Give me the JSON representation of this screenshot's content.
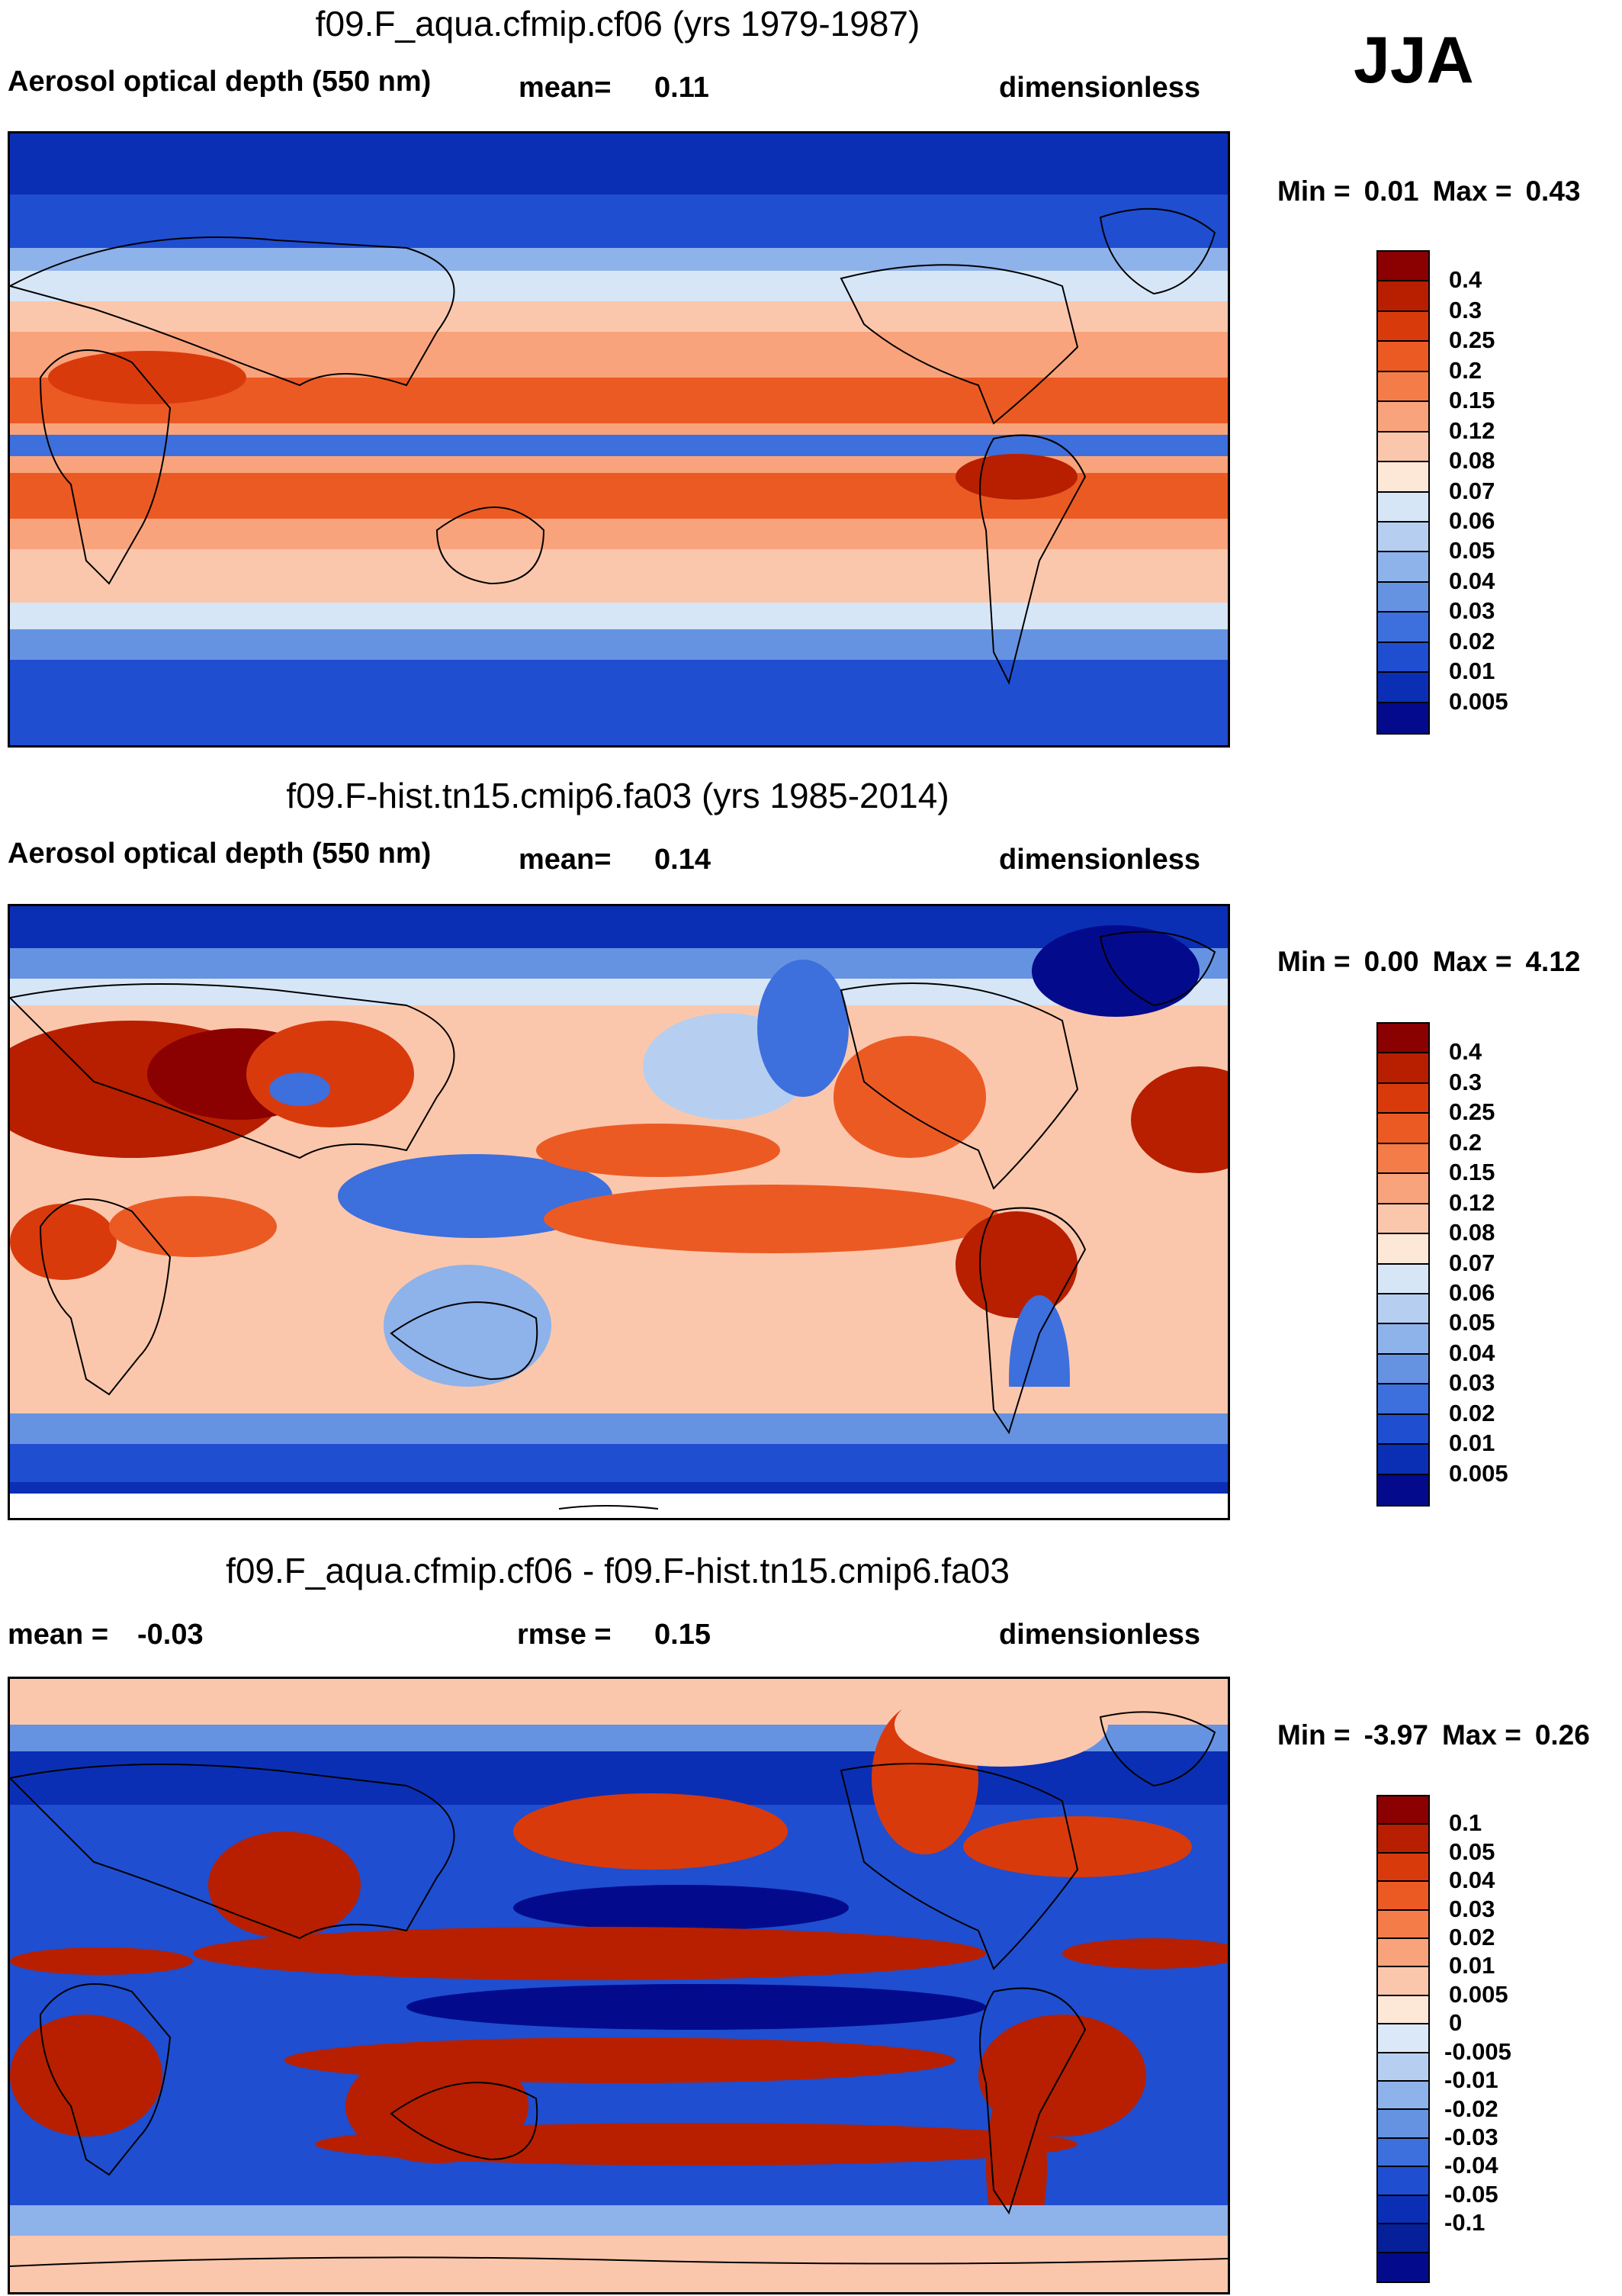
{
  "season": "JJA",
  "units": "dimensionless",
  "colors": {
    "abs_scale": [
      "#8b0000",
      "#b71f00",
      "#d93a0c",
      "#ec5a24",
      "#f47c48",
      "#f9a37c",
      "#fbc7ac",
      "#fde8d8",
      "#d7e6f7",
      "#b6cff0",
      "#8eb2ea",
      "#6593e2",
      "#3d6fdd",
      "#1f4ed0",
      "#0b2fb4",
      "#030b8c"
    ],
    "diff_scale": [
      "#8b0000",
      "#b71f00",
      "#d93a0c",
      "#ec5a24",
      "#f47c48",
      "#f9a37c",
      "#fbc7ac",
      "#fde8d8",
      "#dbe8f8",
      "#b6cff0",
      "#8eb2ea",
      "#6593e2",
      "#3d6fdd",
      "#1f4ed0",
      "#0b2fb4",
      "#06209a",
      "#030b8c"
    ]
  },
  "panels": [
    {
      "title": "f09.F_aqua.cfmip.cf06 (yrs 1979-1987)",
      "left_label": "Aerosol optical depth (550 nm)",
      "stat_label": "mean=",
      "stat_value": "0.11",
      "units": "dimensionless",
      "min_label": "Min =",
      "min_value": "0.01",
      "max_label": "Max =",
      "max_value": "0.43",
      "colorbar_labels": [
        "0.4",
        "0.3",
        "0.25",
        "0.2",
        "0.15",
        "0.12",
        "0.08",
        "0.07",
        "0.06",
        "0.05",
        "0.04",
        "0.03",
        "0.02",
        "0.01",
        "0.005"
      ]
    },
    {
      "title": "f09.F-hist.tn15.cmip6.fa03 (yrs 1985-2014)",
      "left_label": "Aerosol optical depth (550 nm)",
      "stat_label": "mean=",
      "stat_value": "0.14",
      "units": "dimensionless",
      "min_label": "Min =",
      "min_value": "0.00",
      "max_label": "Max =",
      "max_value": "4.12",
      "colorbar_labels": [
        "0.4",
        "0.3",
        "0.25",
        "0.2",
        "0.15",
        "0.12",
        "0.08",
        "0.07",
        "0.06",
        "0.05",
        "0.04",
        "0.03",
        "0.02",
        "0.01",
        "0.005"
      ]
    },
    {
      "title": "f09.F_aqua.cfmip.cf06 - f09.F-hist.tn15.cmip6.fa03",
      "left_label": "mean =",
      "left_value": "-0.03",
      "stat_label": "rmse =",
      "stat_value": "0.15",
      "units": "dimensionless",
      "min_label": "Min =",
      "min_value": "-3.97",
      "max_label": "Max =",
      "max_value": "0.26",
      "colorbar_labels": [
        "0.1",
        "0.05",
        "0.04",
        "0.03",
        "0.02",
        "0.01",
        "0.005",
        "0",
        "-0.005",
        "-0.01",
        "-0.02",
        "-0.03",
        "-0.04",
        "-0.05",
        "-0.1"
      ]
    }
  ]
}
